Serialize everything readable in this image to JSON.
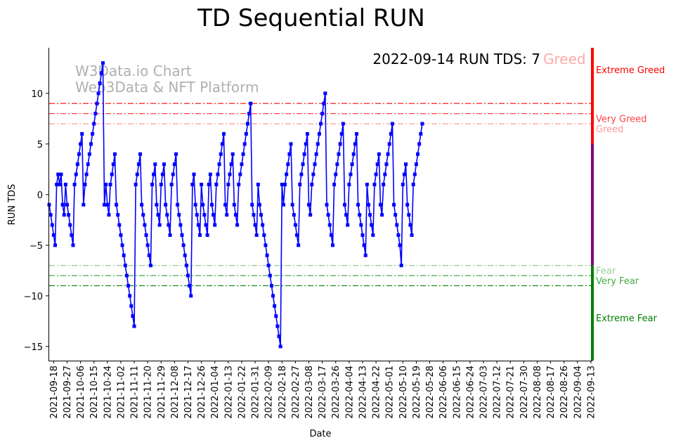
{
  "chart_data": {
    "type": "line",
    "title": "TD Sequential RUN",
    "xlabel": "Date",
    "ylabel": "RUN TDS",
    "ylim": [
      -16.4,
      14.5
    ],
    "yticks": [
      10,
      5,
      0,
      -5,
      -10,
      -15
    ],
    "x_range": [
      "2021-09-15",
      "2022-09-14"
    ],
    "x_ticks": [
      "2021-09-18",
      "2021-09-27",
      "2021-10-06",
      "2021-10-15",
      "2021-10-24",
      "2021-11-02",
      "2021-11-11",
      "2021-11-20",
      "2021-11-29",
      "2021-12-08",
      "2021-12-17",
      "2021-12-26",
      "2022-01-04",
      "2022-01-13",
      "2022-01-22",
      "2022-01-31",
      "2022-02-09",
      "2022-02-18",
      "2022-02-27",
      "2022-03-08",
      "2022-03-17",
      "2022-03-26",
      "2022-04-04",
      "2022-04-13",
      "2022-04-22",
      "2022-05-01",
      "2022-05-10",
      "2022-05-19",
      "2022-05-28",
      "2022-06-06",
      "2022-06-15",
      "2022-06-24",
      "2022-07-03",
      "2022-07-12",
      "2022-07-21",
      "2022-07-30",
      "2022-08-08",
      "2022-08-17",
      "2022-08-26",
      "2022-09-04",
      "2022-09-13"
    ],
    "series": [
      {
        "color": "#0000ff",
        "marker": "square",
        "start_date": "2021-09-15",
        "y": [
          -1,
          -2,
          -3,
          -4,
          -5,
          1,
          2,
          1,
          2,
          -1,
          -2,
          1,
          -1,
          -2,
          -3,
          -4,
          -5,
          1,
          2,
          3,
          4,
          5,
          6,
          -1,
          1,
          2,
          3,
          4,
          5,
          6,
          7,
          8,
          9,
          10,
          11,
          12,
          13,
          -1,
          1,
          -1,
          -2,
          1,
          2,
          3,
          4,
          -1,
          -2,
          -3,
          -4,
          -5,
          -6,
          -7,
          -8,
          -9,
          -10,
          -11,
          -12,
          -13,
          1,
          2,
          3,
          4,
          -1,
          -2,
          -3,
          -4,
          -5,
          -6,
          -7,
          1,
          2,
          3,
          -1,
          -2,
          -3,
          1,
          2,
          3,
          -1,
          -2,
          -3,
          -4,
          1,
          2,
          3,
          4,
          -1,
          -2,
          -3,
          -4,
          -5,
          -6,
          -7,
          -8,
          -9,
          -10,
          1,
          2,
          -1,
          -2,
          -3,
          -4,
          1,
          -1,
          -2,
          -3,
          -4,
          1,
          2,
          -1,
          -2,
          -3,
          1,
          2,
          3,
          4,
          5,
          6,
          -1,
          -2,
          1,
          2,
          3,
          4,
          -1,
          -2,
          -3,
          1,
          2,
          3,
          4,
          5,
          6,
          7,
          8,
          9,
          -1,
          -2,
          -3,
          -4,
          1,
          -1,
          -2,
          -3,
          -4,
          -5,
          -6,
          -7,
          -8,
          -9,
          -10,
          -11,
          -12,
          -13,
          -14,
          -15,
          1,
          -1,
          1,
          2,
          3,
          4,
          5,
          -1,
          -2,
          -3,
          -4,
          -5,
          1,
          2,
          3,
          4,
          5,
          6,
          -1,
          -2,
          1,
          2,
          3,
          4,
          5,
          6,
          7,
          8,
          9,
          10,
          -1,
          -2,
          -3,
          -4,
          -5,
          1,
          2,
          3,
          4,
          5,
          6,
          7,
          -1,
          -2,
          -3,
          1,
          2,
          3,
          4,
          5,
          6,
          -1,
          -2,
          -3,
          -4,
          -5,
          -6,
          1,
          -1,
          -2,
          -3,
          -4,
          1,
          2,
          3,
          4,
          -1,
          -2,
          1,
          2,
          3,
          4,
          5,
          6,
          7,
          -1,
          -2,
          -3,
          -4,
          -5,
          -7,
          1,
          2,
          3,
          -1,
          -2,
          -3,
          -4,
          1,
          2,
          3,
          4,
          5,
          6,
          7
        ]
      }
    ],
    "thresholds": [
      {
        "value": 9,
        "label": "Extreme Greed",
        "color": "#ff0000"
      },
      {
        "value": 8,
        "label": "Very Greed",
        "color": "#ff4444"
      },
      {
        "value": 7,
        "label": "Greed",
        "color": "#ff9999"
      },
      {
        "value": -7,
        "label": "Fear",
        "color": "#99cc99"
      },
      {
        "value": -8,
        "label": "Very Fear",
        "color": "#44aa44"
      },
      {
        "value": -9,
        "label": "Extreme Fear",
        "color": "#008000"
      }
    ],
    "zone_bar": [
      {
        "from": 14.5,
        "to": 5,
        "color": "#ff0000"
      },
      {
        "from": 5,
        "to": -7,
        "color": "#800080"
      },
      {
        "from": -7,
        "to": -16.4,
        "color": "#008000"
      }
    ],
    "annotation": {
      "text": "2022-09-14 RUN TDS: 7",
      "status": "Greed",
      "status_color": "#ffaaaa"
    },
    "watermark": [
      "W3Data.io Chart",
      "Web3Data & NFT Platform"
    ]
  }
}
